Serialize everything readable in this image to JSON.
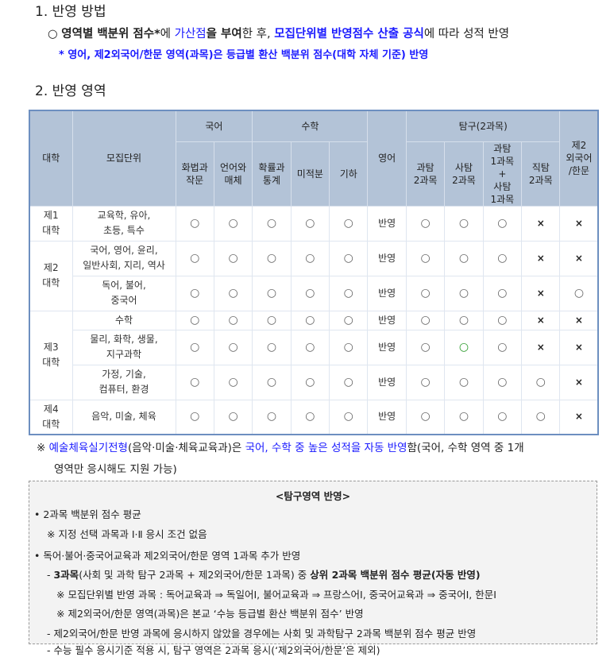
{
  "section1": {
    "title": "1. 반영 방법",
    "bullet": [
      "○ ",
      "영역별 백분위 점수*",
      "에 ",
      "가산점",
      "을 ",
      "부여",
      "한 후, ",
      "모집단위별 반영점수 산출 공식",
      "에 따라 성적 반영"
    ],
    "footnote": "* 영어, 제2외국어/한문 영역(과목)은 등급별 환산 백분위 점수(대학 자체 기준) 반영"
  },
  "section2": {
    "title": "2. 반영 영역"
  },
  "table": {
    "h_univ": "대학",
    "h_unit": "모집단위",
    "h_korean": "국어",
    "h_math": "수학",
    "h_english": "영어",
    "h_inquiry": "탐구(2과목)",
    "h_lang2": "제2\n외국어\n/한문",
    "sub": [
      "화법과\n작문",
      "언어와\n매체",
      "확률과\n통계",
      "미적분",
      "기하",
      "과탐\n2과목",
      "사탐\n2과목",
      "과탐\n1과목\n+\n사탐\n1과목",
      "직탐\n2과목"
    ],
    "univs": [
      "제1\n대학",
      "제2\n대학",
      "제3\n대학",
      "제4\n대학"
    ],
    "rows": [
      {
        "unit": "교육학, 유아,\n초등, 특수",
        "cells": [
          "○",
          "○",
          "○",
          "○",
          "○",
          "반영",
          "○",
          "○",
          "○",
          "×",
          "×"
        ]
      },
      {
        "unit": "국어, 영어, 윤리,\n일반사회, 지리, 역사",
        "cells": [
          "○",
          "○",
          "○",
          "○",
          "○",
          "반영",
          "○",
          "○",
          "○",
          "×",
          "×"
        ]
      },
      {
        "unit": "독어, 불어,\n중국어",
        "cells": [
          "○",
          "○",
          "○",
          "○",
          "○",
          "반영",
          "○",
          "○",
          "○",
          "×",
          "○"
        ]
      },
      {
        "unit": "수학",
        "cells": [
          "○",
          "○",
          "○",
          "○",
          "○",
          "반영",
          "○",
          "○",
          "○",
          "×",
          "×"
        ]
      },
      {
        "unit": "물리, 화학, 생물,\n지구과학",
        "cells": [
          "○",
          "○",
          "○",
          "○",
          "○",
          "반영",
          "○",
          "○",
          "○",
          "×",
          "×"
        ]
      },
      {
        "unit": "가정, 기술,\n컴퓨터, 환경",
        "cells": [
          "○",
          "○",
          "○",
          "○",
          "○",
          "반영",
          "○",
          "○",
          "○",
          "○",
          "×"
        ]
      },
      {
        "unit": "음악, 미술, 체육",
        "cells": [
          "○",
          "○",
          "○",
          "○",
          "○",
          "반영",
          "○",
          "○",
          "○",
          "○",
          "×"
        ]
      }
    ]
  },
  "remark": {
    "p1": "※ ",
    "p2": "예술체육실기전형",
    "p3": "(음악·미술·체육교육과)은 ",
    "p4": "국어, 수학 중 높은 성적을 자동 반영",
    "p5": "함(국어, 수학 영역 중 1개",
    "p6": "영역만 응시해도 지원 가능)"
  },
  "note": {
    "title": "<탐구영역 반영>",
    "l1": "• 2과목 백분위 점수 평균",
    "l2": "※ 지정 선택 과목과 Ⅰ·Ⅱ 응시 조건 없음",
    "l3": "• 독어·불어·중국어교육과 제2외국어/한문 영역 1과목 추가 반영",
    "l4a": "- ",
    "l4b": "3과목",
    "l4c": "(사회 및 과학 탐구 2과목 + 제2외국어/한문 1과목) 중 ",
    "l4d": "상위 2과목 백분위 점수 평균(자동 반영)",
    "l5": "※ 모집단위별 반영 과목 : 독어교육과 ⇒ 독일어Ⅰ, 불어교육과 ⇒ 프랑스어Ⅰ, 중국어교육과 ⇒ 중국어Ⅰ, 한문Ⅰ",
    "l6": "※ 제2외국어/한문 영역(과목)은 본교 ‘수능 등급별 환산 백분위 점수’ 반영",
    "l7": "- 제2외국어/한문 반영 과목에 응시하지 않았을 경우에는 사회 및 과학탐구 2과목 백분위 점수 평균 반영",
    "l8": "- 수능 필수 응시기준 적용 시, 탐구 영역은 2과목 응시(‘제2외국어/한문’은 제외)"
  }
}
